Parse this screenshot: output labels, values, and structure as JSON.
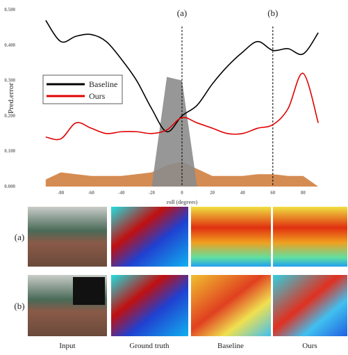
{
  "chart_data": {
    "type": "line",
    "x_label": "roll (degrees)",
    "y_label": "Pred.error",
    "x": [
      -90,
      -80,
      -70,
      -60,
      -50,
      -40,
      -30,
      -20,
      -10,
      0,
      10,
      20,
      30,
      40,
      50,
      60,
      70,
      80,
      90
    ],
    "series": [
      {
        "name": "Baseline",
        "color": "#000000",
        "values": [
          0.47,
          0.41,
          0.425,
          0.43,
          0.41,
          0.36,
          0.3,
          0.22,
          0.155,
          0.2,
          0.23,
          0.29,
          0.34,
          0.38,
          0.41,
          0.385,
          0.39,
          0.375,
          0.435
        ]
      },
      {
        "name": "Ours",
        "color": "#e00000",
        "values": [
          0.14,
          0.135,
          0.18,
          0.165,
          0.15,
          0.155,
          0.155,
          0.15,
          0.16,
          0.195,
          0.18,
          0.165,
          0.15,
          0.15,
          0.165,
          0.175,
          0.22,
          0.32,
          0.18
        ]
      }
    ],
    "areas": [
      {
        "color": "#d08040",
        "x": [
          -90,
          -80,
          -70,
          -60,
          -50,
          -40,
          -30,
          -20,
          -10,
          0,
          10,
          20,
          30,
          40,
          50,
          60,
          70,
          80,
          90
        ],
        "values": [
          0.02,
          0.04,
          0.035,
          0.03,
          0.03,
          0.03,
          0.035,
          0.04,
          0.06,
          0.07,
          0.05,
          0.03,
          0.03,
          0.03,
          0.035,
          0.035,
          0.03,
          0.03,
          0
        ]
      },
      {
        "color": "#8c8c8c",
        "x": [
          -20,
          -10,
          0,
          10
        ],
        "values": [
          0,
          0.31,
          0.3,
          0
        ]
      }
    ],
    "annotations": [
      {
        "x": 0,
        "label": "(a)"
      },
      {
        "x": 60,
        "label": "(b)"
      }
    ],
    "xlim": [
      -100,
      100
    ],
    "ylim": [
      0,
      0.5
    ],
    "xticks": [
      -80,
      -60,
      -40,
      -20,
      0,
      20,
      40,
      60,
      80
    ],
    "yticks": [
      {
        "value": 0,
        "label": "0.000"
      },
      {
        "value": 0.1,
        "label": "0.100"
      },
      {
        "value": 0.2,
        "label": "0.200"
      },
      {
        "value": 0.3,
        "label": "0.300"
      },
      {
        "value": 0.4,
        "label": "0.400"
      },
      {
        "value": 0.5,
        "label": "0.500"
      }
    ],
    "legend": "upper left"
  },
  "image_grid": {
    "rows": [
      "(a)",
      "(b)"
    ],
    "columns": [
      "Input",
      "Ground truth",
      "Baseline",
      "Ours"
    ]
  }
}
